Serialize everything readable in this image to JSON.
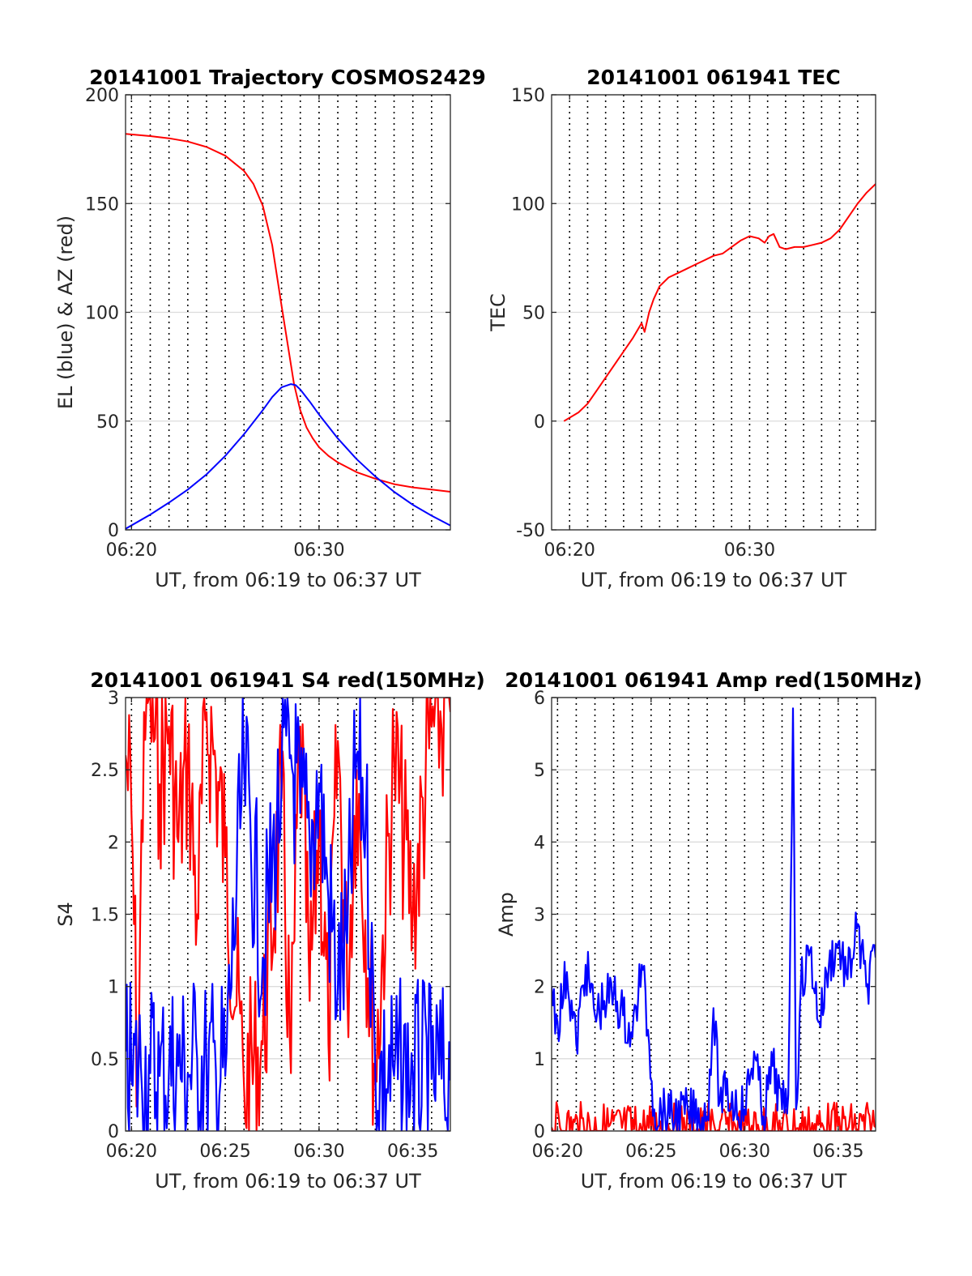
{
  "chart_data": [
    {
      "type": "line",
      "title": "20141001 Trajectory COSMOS2429",
      "xlabel": "UT, from 06:19 to 06:37 UT",
      "ylabel": "EL (blue) & AZ (red)",
      "xlim": [
        "06:19:41",
        "06:37:00"
      ],
      "ylim": [
        0,
        200
      ],
      "xticks": [
        "06:20",
        "06:30"
      ],
      "yticks": [
        0,
        50,
        100,
        150,
        200
      ],
      "grid": "horizontal",
      "marker_times": [
        "06:20",
        "06:21",
        "06:22",
        "06:23",
        "06:24",
        "06:25",
        "06:26",
        "06:27",
        "06:28",
        "06:29",
        "06:30",
        "06:31",
        "06:32",
        "06:33",
        "06:34",
        "06:35",
        "06:36"
      ],
      "series": [
        {
          "color": "#ff0000",
          "x": [
            "06:19:41",
            "06:21:00",
            "06:22:00",
            "06:23:00",
            "06:24:00",
            "06:25:00",
            "06:26:00",
            "06:26:30",
            "06:27:00",
            "06:27:30",
            "06:28:00",
            "06:28:20",
            "06:28:40",
            "06:29:00",
            "06:29:20",
            "06:29:40",
            "06:30:00",
            "06:30:30",
            "06:31:00",
            "06:32:00",
            "06:33:00",
            "06:34:00",
            "06:35:00",
            "06:36:00",
            "06:37:00"
          ],
          "values": [
            182,
            181,
            180,
            178.5,
            176,
            172,
            165,
            159,
            149,
            131,
            103,
            85,
            67,
            55,
            47,
            42,
            38,
            34,
            31,
            26.5,
            23.5,
            21,
            19.5,
            18.5,
            17.5
          ]
        },
        {
          "color": "#0000ff",
          "x": [
            "06:19:41",
            "06:21:00",
            "06:22:00",
            "06:23:00",
            "06:24:00",
            "06:25:00",
            "06:26:00",
            "06:27:00",
            "06:27:30",
            "06:28:00",
            "06:28:30",
            "06:28:45",
            "06:29:00",
            "06:29:30",
            "06:30:00",
            "06:31:00",
            "06:32:00",
            "06:33:00",
            "06:34:00",
            "06:35:00",
            "06:36:00",
            "06:37:00"
          ],
          "values": [
            0.5,
            7,
            12.5,
            18.5,
            25.5,
            34,
            44,
            55,
            61,
            65.5,
            67,
            66.5,
            64.5,
            59,
            53,
            42,
            32.5,
            24.5,
            17.5,
            11.5,
            6.5,
            2
          ]
        }
      ]
    },
    {
      "type": "line",
      "title": "20141001 061941 TEC",
      "xlabel": "UT, from 06:19 to 06:37 UT",
      "ylabel": "TEC",
      "xlim": [
        "06:19:00",
        "06:37:00"
      ],
      "ylim": [
        -50,
        150
      ],
      "xticks": [
        "06:20",
        "06:30"
      ],
      "yticks": [
        -50,
        0,
        50,
        100,
        150
      ],
      "grid": "horizontal",
      "marker_times": [
        "06:20",
        "06:21",
        "06:22",
        "06:23",
        "06:24",
        "06:25",
        "06:26",
        "06:27",
        "06:28",
        "06:29",
        "06:30",
        "06:31",
        "06:32",
        "06:33",
        "06:34",
        "06:35",
        "06:36"
      ],
      "series": [
        {
          "color": "#ff0000",
          "x": [
            "06:19:41",
            "06:20:30",
            "06:21:00",
            "06:21:30",
            "06:22:00",
            "06:22:30",
            "06:23:00",
            "06:23:30",
            "06:24:00",
            "06:24:10",
            "06:24:25",
            "06:24:40",
            "06:25:00",
            "06:25:30",
            "06:26:00",
            "06:26:30",
            "06:27:00",
            "06:27:30",
            "06:28:00",
            "06:28:30",
            "06:29:00",
            "06:29:30",
            "06:30:00",
            "06:30:30",
            "06:30:50",
            "06:31:05",
            "06:31:20",
            "06:31:40",
            "06:32:00",
            "06:32:30",
            "06:33:00",
            "06:33:30",
            "06:34:00",
            "06:34:30",
            "06:35:00",
            "06:35:30",
            "06:36:00",
            "06:36:30",
            "06:37:00"
          ],
          "values": [
            0,
            4,
            8,
            14,
            20,
            26,
            32,
            38,
            45,
            41,
            50,
            56,
            62,
            66,
            68,
            70,
            72,
            74,
            76,
            77,
            80,
            83,
            85,
            84,
            82,
            85,
            86,
            80,
            79,
            80,
            80,
            81,
            82,
            84,
            88,
            94,
            100,
            105,
            109
          ]
        }
      ]
    },
    {
      "type": "line",
      "title": "20141001 061941 S4 red(150MHz)",
      "xlabel": "UT, from 06:19 to 06:37 UT",
      "ylabel": "S4",
      "xlim": [
        "06:19:41",
        "06:37:00"
      ],
      "ylim": [
        0,
        3
      ],
      "xticks": [
        "06:20",
        "06:25",
        "06:30",
        "06:35"
      ],
      "yticks": [
        0,
        0.5,
        1,
        1.5,
        2,
        2.5,
        3
      ],
      "grid": "horizontal",
      "marker_times": [
        "06:20",
        "06:21",
        "06:22",
        "06:23",
        "06:24",
        "06:25",
        "06:26",
        "06:27",
        "06:28",
        "06:29",
        "06:30",
        "06:31",
        "06:32",
        "06:33",
        "06:34",
        "06:35",
        "06:36"
      ],
      "series": [
        {
          "color": "#ff0000",
          "x": [
            "06:19:41",
            "06:20:00",
            "06:20:20",
            "06:20:40",
            "06:21:00",
            "06:21:30",
            "06:22:00",
            "06:22:30",
            "06:23:00",
            "06:23:30",
            "06:24:00",
            "06:24:30",
            "06:25:00",
            "06:26:00",
            "06:27:00",
            "06:28:00",
            "06:28:30",
            "06:29:00",
            "06:29:30",
            "06:30:00",
            "06:30:30",
            "06:31:00",
            "06:31:30",
            "06:32:00",
            "06:33:00",
            "06:34:00",
            "06:35:00",
            "06:36:00",
            "06:37:00"
          ],
          "values": [
            2.6,
            2.2,
            0.3,
            2.9,
            3.0,
            2.4,
            2.8,
            2.0,
            2.6,
            1.5,
            2.9,
            2.5,
            1.9,
            0.3,
            0.6,
            2.3,
            0.4,
            2.8,
            0.9,
            2.2,
            0.6,
            2.7,
            1.0,
            2.5,
            0.4,
            2.6,
            1.5,
            2.8,
            2.9
          ]
        },
        {
          "color": "#0000ff",
          "x": [
            "06:19:41",
            "06:20:00",
            "06:20:30",
            "06:21:00",
            "06:21:30",
            "06:22:00",
            "06:22:30",
            "06:23:00",
            "06:23:30",
            "06:24:00",
            "06:24:30",
            "06:25:00",
            "06:26:00",
            "06:27:00",
            "06:28:00",
            "06:28:30",
            "06:29:00",
            "06:29:30",
            "06:30:00",
            "06:30:30",
            "06:31:00",
            "06:31:30",
            "06:32:00",
            "06:32:30",
            "06:33:00",
            "06:34:00",
            "06:35:00",
            "06:36:00",
            "06:37:00"
          ],
          "values": [
            0.55,
            0.35,
            0.45,
            0.4,
            0.38,
            0.42,
            0.45,
            0.4,
            0.5,
            0.4,
            0.42,
            0.38,
            2.5,
            1.2,
            2.4,
            2.6,
            2.2,
            2.0,
            2.4,
            1.6,
            1.0,
            1.3,
            2.6,
            2.2,
            0.4,
            0.38,
            0.4,
            0.36,
            0.35
          ]
        }
      ]
    },
    {
      "type": "line",
      "title": "20141001 061941 Amp red(150MHz)",
      "xlabel": "UT, from 06:19 to 06:37 UT",
      "ylabel": "Amp",
      "xlim": [
        "06:19:41",
        "06:37:00"
      ],
      "ylim": [
        0,
        6
      ],
      "xticks": [
        "06:20",
        "06:25",
        "06:30",
        "06:35"
      ],
      "yticks": [
        0,
        1,
        2,
        3,
        4,
        5,
        6
      ],
      "grid": "horizontal",
      "marker_times": [
        "06:20",
        "06:21",
        "06:22",
        "06:23",
        "06:24",
        "06:25",
        "06:26",
        "06:27",
        "06:28",
        "06:29",
        "06:30",
        "06:31",
        "06:32",
        "06:33",
        "06:34",
        "06:35",
        "06:36"
      ],
      "series": [
        {
          "color": "#ff0000",
          "x": [
            "06:19:41",
            "06:25:00",
            "06:30:00",
            "06:32:50",
            "06:37:00"
          ],
          "values": [
            0.05,
            0.03,
            0.02,
            0.04,
            0.05
          ]
        },
        {
          "color": "#0000ff",
          "x": [
            "06:19:41",
            "06:20:00",
            "06:20:30",
            "06:21:00",
            "06:21:30",
            "06:22:00",
            "06:22:30",
            "06:23:00",
            "06:23:30",
            "06:24:00",
            "06:24:30",
            "06:24:50",
            "06:25:10",
            "06:26:00",
            "06:27:00",
            "06:28:00",
            "06:28:20",
            "06:28:40",
            "06:29:00",
            "06:30:00",
            "06:30:30",
            "06:31:00",
            "06:31:30",
            "06:32:00",
            "06:32:20",
            "06:32:35",
            "06:32:45",
            "06:33:00",
            "06:33:30",
            "06:34:00",
            "06:34:30",
            "06:35:00",
            "06:35:30",
            "06:36:00",
            "06:36:30",
            "06:37:00"
          ],
          "values": [
            2.0,
            1.5,
            2.2,
            1.2,
            2.3,
            1.6,
            1.8,
            1.9,
            1.6,
            1.3,
            2.3,
            1.4,
            0.3,
            0.2,
            0.25,
            0.2,
            1.7,
            0.4,
            0.5,
            0.3,
            1.1,
            0.2,
            0.9,
            0.3,
            0.5,
            5.85,
            0.3,
            2.0,
            2.5,
            1.5,
            2.3,
            2.6,
            2.1,
            2.8,
            2.0,
            2.4
          ]
        }
      ]
    }
  ]
}
